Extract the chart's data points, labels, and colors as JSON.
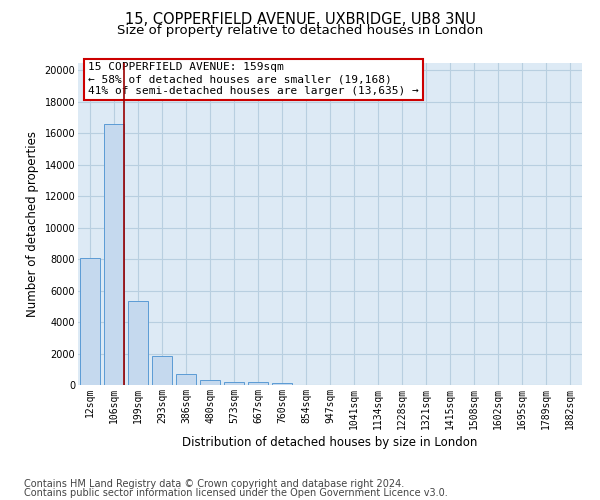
{
  "title_line1": "15, COPPERFIELD AVENUE, UXBRIDGE, UB8 3NU",
  "title_line2": "Size of property relative to detached houses in London",
  "xlabel": "Distribution of detached houses by size in London",
  "ylabel": "Number of detached properties",
  "bar_color": "#c5d9ee",
  "bar_edge_color": "#5b9bd5",
  "grid_color": "#b8cfe0",
  "background_color": "#ddeaf5",
  "categories": [
    "12sqm",
    "106sqm",
    "199sqm",
    "293sqm",
    "386sqm",
    "480sqm",
    "573sqm",
    "667sqm",
    "760sqm",
    "854sqm",
    "947sqm",
    "1041sqm",
    "1134sqm",
    "1228sqm",
    "1321sqm",
    "1415sqm",
    "1508sqm",
    "1602sqm",
    "1695sqm",
    "1789sqm",
    "1882sqm"
  ],
  "values": [
    8100,
    16600,
    5350,
    1850,
    700,
    330,
    210,
    175,
    155,
    0,
    0,
    0,
    0,
    0,
    0,
    0,
    0,
    0,
    0,
    0,
    0
  ],
  "ylim": [
    0,
    20500
  ],
  "yticks": [
    0,
    2000,
    4000,
    6000,
    8000,
    10000,
    12000,
    14000,
    16000,
    18000,
    20000
  ],
  "ytick_labels": [
    "0",
    "2000",
    "4000",
    "6000",
    "8000",
    "10000",
    "12000",
    "14000",
    "16000",
    "18000",
    "20000"
  ],
  "vline_color": "#990000",
  "annotation_text": "15 COPPERFIELD AVENUE: 159sqm\n← 58% of detached houses are smaller (19,168)\n41% of semi-detached houses are larger (13,635) →",
  "annotation_box_color": "#cc0000",
  "annotation_bg": "#ffffff",
  "footer_line1": "Contains HM Land Registry data © Crown copyright and database right 2024.",
  "footer_line2": "Contains public sector information licensed under the Open Government Licence v3.0.",
  "footer_color": "#444444",
  "title_fontsize": 10.5,
  "subtitle_fontsize": 9.5,
  "axis_label_fontsize": 8.5,
  "tick_fontsize": 7,
  "annotation_fontsize": 8,
  "footer_fontsize": 7
}
